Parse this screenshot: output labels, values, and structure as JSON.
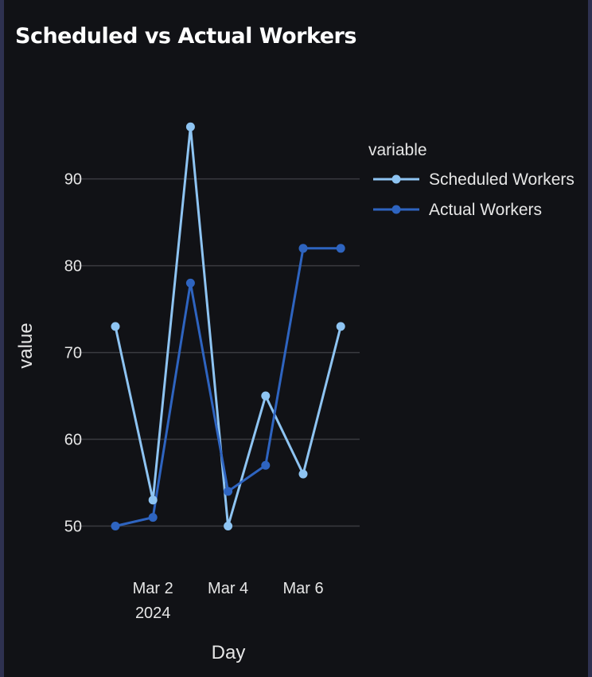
{
  "chart_data": {
    "type": "line",
    "title": "Scheduled vs Actual Workers",
    "xlabel": "Day",
    "ylabel": "value",
    "x": [
      "2024-03-01",
      "2024-03-02",
      "2024-03-03",
      "2024-03-04",
      "2024-03-05",
      "2024-03-06",
      "2024-03-07"
    ],
    "x_ticks": [
      {
        "date": "2024-03-02",
        "label": "Mar 2",
        "sublabel": "2024"
      },
      {
        "date": "2024-03-04",
        "label": "Mar 4",
        "sublabel": ""
      },
      {
        "date": "2024-03-06",
        "label": "Mar 6",
        "sublabel": ""
      }
    ],
    "y_ticks": [
      50,
      60,
      70,
      80,
      90
    ],
    "ylim": [
      45,
      98.5
    ],
    "legend_title": "variable",
    "legend_position": "top-right",
    "grid": "horizontal",
    "series": [
      {
        "name": "Scheduled Workers",
        "color": "#8ec4f2",
        "values": [
          73,
          53,
          96,
          50,
          65,
          56,
          73
        ]
      },
      {
        "name": "Actual Workers",
        "color": "#2e64c0",
        "values": [
          50,
          51,
          78,
          54,
          57,
          82,
          82
        ]
      }
    ]
  },
  "colors": {
    "background": "#111216",
    "border": "#2e3150",
    "gridline": "#3a3b40"
  }
}
